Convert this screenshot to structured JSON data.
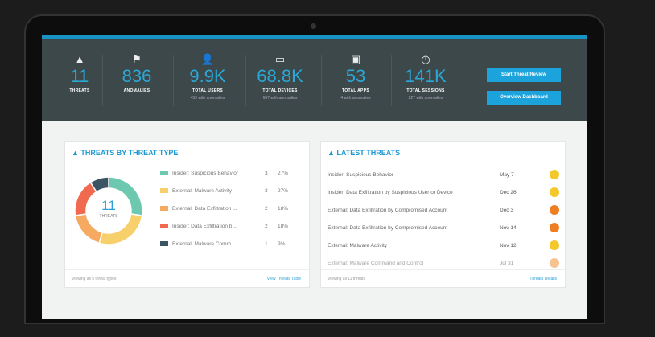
{
  "stats": [
    {
      "icon": "warning-icon",
      "glyph": "▲",
      "value": "11",
      "label": "THREATS",
      "sub": ""
    },
    {
      "icon": "flag-icon",
      "glyph": "⚑",
      "value": "836",
      "label": "ANOMALIES",
      "sub": ""
    },
    {
      "icon": "user-icon",
      "glyph": "👤",
      "value": "9.9K",
      "label": "TOTAL USERS",
      "sub": "459 with anomalies"
    },
    {
      "icon": "monitor-icon",
      "glyph": "▭",
      "value": "68.8K",
      "label": "TOTAL DEVICES",
      "sub": "667 with anomalies"
    },
    {
      "icon": "app-icon",
      "glyph": "▣",
      "value": "53",
      "label": "TOTAL APPS",
      "sub": "4 with anomalies"
    },
    {
      "icon": "clock-icon",
      "glyph": "◷",
      "value": "141K",
      "label": "TOTAL SESSIONS",
      "sub": "227 with anomalies"
    }
  ],
  "buttons": {
    "start": "Start Threat Review",
    "overview": "Overview Dashboard"
  },
  "left_card": {
    "title": "THREATS BY THREAT TYPE",
    "center_value": "11",
    "center_label": "THREATS",
    "footer": "Viewing all 5 threat types",
    "link": "View Threats Table"
  },
  "chart_data": {
    "type": "pie",
    "categories": [
      "Insider: Suspicious Behavior",
      "External: Malware Activity",
      "External: Data Exfiltration ...",
      "Insider: Data Exfiltration b...",
      "External: Malware Comm..."
    ],
    "values": [
      3,
      3,
      2,
      2,
      1
    ],
    "percents": [
      "27%",
      "27%",
      "18%",
      "18%",
      "9%"
    ],
    "colors": [
      "#6cc9b0",
      "#f7d06b",
      "#f5a961",
      "#ef6a4e",
      "#3b5564"
    ]
  },
  "right_card": {
    "title": "LATEST THREATS",
    "footer": "Viewing all 11 threats",
    "link": "Threats Details",
    "rows": [
      {
        "name": "Insider: Suspicious Behavior",
        "date": "May 7",
        "color": "#f4c72a"
      },
      {
        "name": "Insider: Data Exfiltration by Suspicious User or Device",
        "date": "Dec 26",
        "color": "#f4c72a"
      },
      {
        "name": "External: Data Exfiltration by Compromised Account",
        "date": "Dec 3",
        "color": "#ef7d22"
      },
      {
        "name": "External: Data Exfiltration by Compromised Account",
        "date": "Nov 14",
        "color": "#ef7d22"
      },
      {
        "name": "External: Malware Activity",
        "date": "Nov 12",
        "color": "#f4c72a"
      },
      {
        "name": "External: Malware Command and Control",
        "date": "Jul 31",
        "color": "#f29a4a"
      }
    ]
  }
}
